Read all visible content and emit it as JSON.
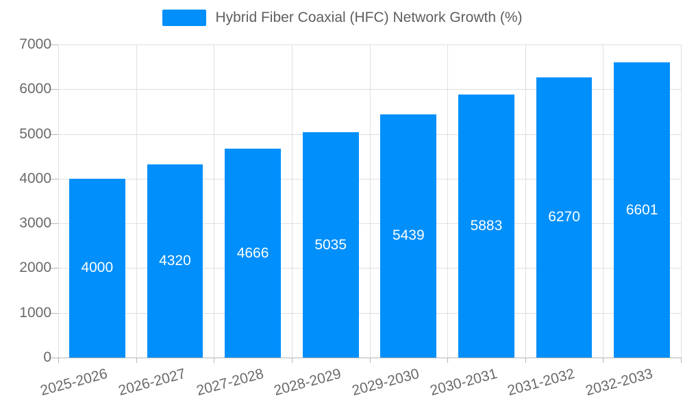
{
  "legend": {
    "label": "Hybrid Fiber Coaxial (HFC) Network Growth (%)",
    "swatch_color": "#008FFB"
  },
  "chart_data": {
    "type": "bar",
    "title": "Hybrid Fiber Coaxial (HFC) Network Growth (%)",
    "categories": [
      "2025-2026",
      "2026-2027",
      "2027-2028",
      "2028-2029",
      "2029-2030",
      "2030-2031",
      "2031-2032",
      "2032-2033"
    ],
    "values": [
      4000,
      4320,
      4666,
      5035,
      5439,
      5883,
      6270,
      6601
    ],
    "data_labels": [
      "4000",
      "4320",
      "4666",
      "5035",
      "5439",
      "5883",
      "6270",
      "6601"
    ],
    "xlabel": "",
    "ylabel": "",
    "ylim": [
      0,
      7000
    ],
    "yticks": [
      0,
      1000,
      2000,
      3000,
      4000,
      5000,
      6000,
      7000
    ],
    "ytick_labels": [
      "0",
      "1000",
      "2000",
      "3000",
      "4000",
      "5000",
      "6000",
      "7000"
    ],
    "grid": true,
    "legend_position": "top",
    "bar_color": "#008FFB",
    "grid_color": "#e0e0e0",
    "axis_color": "#b6b6b6",
    "tick_label_color": "#696969",
    "data_label_color": "#ffffff"
  }
}
